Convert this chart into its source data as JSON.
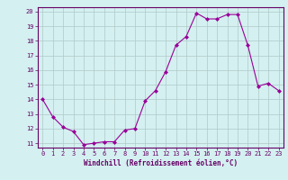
{
  "x": [
    0,
    1,
    2,
    3,
    4,
    5,
    6,
    7,
    8,
    9,
    10,
    11,
    12,
    13,
    14,
    15,
    16,
    17,
    18,
    19,
    20,
    21,
    22,
    23
  ],
  "y": [
    14.0,
    12.8,
    12.1,
    11.8,
    10.9,
    11.0,
    11.1,
    11.1,
    11.9,
    12.0,
    13.9,
    14.6,
    15.9,
    17.7,
    18.3,
    19.9,
    19.5,
    19.5,
    19.8,
    19.8,
    17.7,
    14.9,
    15.1,
    14.6
  ],
  "line_color": "#990099",
  "marker": "D",
  "marker_size": 2,
  "bg_color": "#d4f0f0",
  "grid_color": "#b0c8c8",
  "xlabel": "Windchill (Refroidissement éolien,°C)",
  "xlabel_color": "#660066",
  "tick_color": "#660066",
  "ylim": [
    11,
    20
  ],
  "xlim": [
    -0.5,
    23.5
  ],
  "yticks": [
    11,
    12,
    13,
    14,
    15,
    16,
    17,
    18,
    19,
    20
  ],
  "xticks": [
    0,
    1,
    2,
    3,
    4,
    5,
    6,
    7,
    8,
    9,
    10,
    11,
    12,
    13,
    14,
    15,
    16,
    17,
    18,
    19,
    20,
    21,
    22,
    23
  ]
}
